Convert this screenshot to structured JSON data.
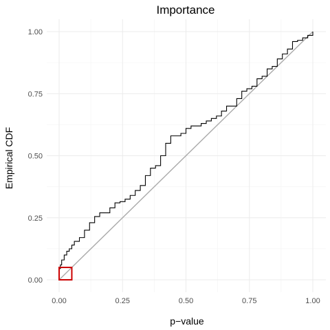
{
  "chart_data": {
    "type": "line",
    "title": "Importance",
    "xlabel": "p−value",
    "ylabel": "Empirical CDF",
    "xlim": [
      0,
      1
    ],
    "ylim": [
      0,
      1
    ],
    "x_ticks": [
      0,
      0.25,
      0.5,
      0.75,
      1
    ],
    "x_tick_labels": [
      "0.00",
      "0.25",
      "0.50",
      "0.75",
      "1.00"
    ],
    "y_ticks": [
      0,
      0.25,
      0.5,
      0.75,
      1
    ],
    "y_tick_labels": [
      "0.00",
      "0.25",
      "0.50",
      "0.75",
      "1.00"
    ],
    "grid": true,
    "series": [
      {
        "style": "step",
        "color": "#000000",
        "x": [
          0.0,
          0.005,
          0.01,
          0.02,
          0.03,
          0.04,
          0.05,
          0.06,
          0.08,
          0.1,
          0.12,
          0.14,
          0.16,
          0.18,
          0.2,
          0.22,
          0.24,
          0.26,
          0.28,
          0.3,
          0.32,
          0.34,
          0.36,
          0.38,
          0.4,
          0.42,
          0.44,
          0.46,
          0.48,
          0.5,
          0.52,
          0.54,
          0.56,
          0.58,
          0.6,
          0.62,
          0.64,
          0.66,
          0.68,
          0.7,
          0.72,
          0.74,
          0.76,
          0.78,
          0.8,
          0.82,
          0.84,
          0.86,
          0.88,
          0.9,
          0.92,
          0.94,
          0.96,
          0.98,
          1.0
        ],
        "y": [
          0.045,
          0.06,
          0.08,
          0.1,
          0.115,
          0.125,
          0.14,
          0.155,
          0.17,
          0.2,
          0.23,
          0.255,
          0.27,
          0.27,
          0.29,
          0.31,
          0.315,
          0.325,
          0.34,
          0.36,
          0.38,
          0.42,
          0.45,
          0.46,
          0.5,
          0.55,
          0.58,
          0.58,
          0.59,
          0.61,
          0.62,
          0.62,
          0.63,
          0.64,
          0.65,
          0.66,
          0.68,
          0.7,
          0.7,
          0.73,
          0.76,
          0.77,
          0.78,
          0.81,
          0.82,
          0.85,
          0.86,
          0.89,
          0.91,
          0.93,
          0.96,
          0.965,
          0.975,
          0.985,
          1.0
        ]
      },
      {
        "style": "line",
        "color": "#aaaaaa",
        "x": [
          0,
          1
        ],
        "y": [
          0,
          1
        ]
      }
    ],
    "annotations": [
      {
        "type": "rectangle",
        "color": "#cc0000",
        "x_range": [
          0,
          0.05
        ],
        "y_range": [
          0,
          0.05
        ]
      }
    ]
  }
}
